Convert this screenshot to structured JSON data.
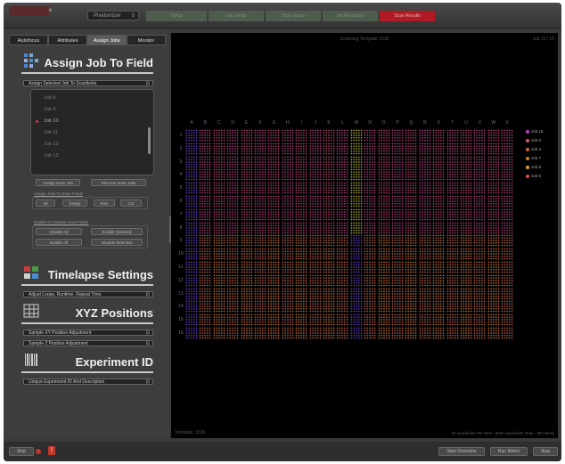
{
  "toolbar": {
    "dropdown_value": "Pixelsmizer",
    "steps": [
      "Setup",
      "Job Setup",
      "Scan Setup",
      "Job Resolution",
      "Scan Results"
    ]
  },
  "tabs": [
    "Autofocus",
    "Attributes",
    "Assign Jobs",
    "Monitor"
  ],
  "active_tab": 2,
  "assign": {
    "title": "Assign Job To Field",
    "bar_label": "Assign Selected Job To Scanfields",
    "jobs": [
      "Job 8",
      "Job 9",
      "Job 10",
      "Job 11",
      "Job 12",
      "Job 13"
    ],
    "selected_job": 2,
    "assign_button": "Assign Scan Job",
    "remove_button": "Remove Scan Jobs",
    "group1_label": "Assign Jobs To Scan Fields",
    "group1_buttons": [
      "All",
      "Empty",
      "Row",
      "Col"
    ],
    "group2_label": "Enable Or Disable Scan Fields",
    "group2_buttons": [
      "Disable All",
      "Enable Selected",
      "Enable All",
      "Disable Selected"
    ]
  },
  "timelapse": {
    "title": "Timelapse Settings",
    "bar_label": "Adjust Loops, Runtime, Repeat Time"
  },
  "xyz": {
    "title": "XYZ Positions",
    "bar1": "Sample XY Position Adjustment",
    "bar2": "Sample Z Position Adjustment"
  },
  "expid": {
    "title": "Experiment ID",
    "bar_label": "Unique Experiment ID And Description"
  },
  "mainview": {
    "title": "Scanning Template 1536",
    "corner": "Job 11 / 16",
    "footer_left": "Template: 1536",
    "footer_right": "25 Scanfields Per Well - 9600 Scanfields Total - 384 Wells",
    "columns": [
      "A",
      "B",
      "C",
      "D",
      "E",
      "F",
      "G",
      "H",
      "I",
      "J",
      "K",
      "L",
      "M",
      "N",
      "O",
      "P",
      "Q",
      "R",
      "S",
      "T",
      "U",
      "V",
      "W",
      "X"
    ],
    "rows": [
      "1",
      "2",
      "3",
      "4",
      "5",
      "6",
      "7",
      "8",
      "9",
      "10",
      "11",
      "12",
      "13",
      "14",
      "15",
      "16"
    ]
  },
  "legend": [
    {
      "label": "Job 16",
      "color": "#b04ab0"
    },
    {
      "label": "Job 5",
      "color": "#d05a60"
    },
    {
      "label": "Job 2",
      "color": "#d06040"
    },
    {
      "label": "Job 7",
      "color": "#d08030"
    },
    {
      "label": "Job 8",
      "color": "#e09a30"
    },
    {
      "label": "Job 6",
      "color": "#d05050"
    }
  ],
  "bottom": {
    "stop_left": "Stop",
    "start_label": "Start Overview",
    "run_label": "Run Matrix",
    "stop_right": "Stop"
  }
}
